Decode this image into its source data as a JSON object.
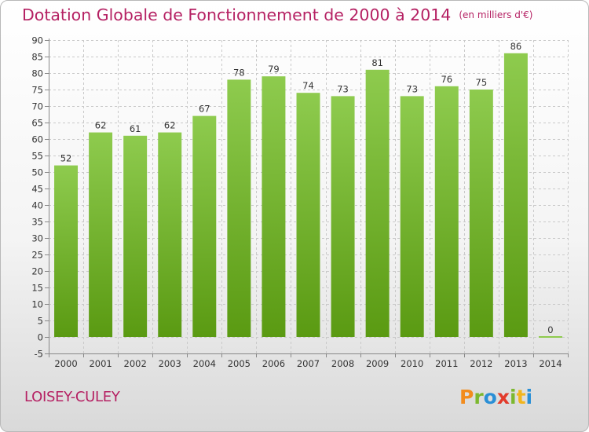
{
  "header": {
    "title": "Dotation Globale de Fonctionnement de 2000 à 2014",
    "subtitle": "(en milliers d'€)"
  },
  "footer": {
    "commune": "LOISEY-CULEY",
    "logo_letters": [
      "P",
      "r",
      "o",
      "x",
      "i",
      "t",
      "i"
    ],
    "logo_colors": [
      "#f28c1e",
      "#7cb82f",
      "#2a8fd6",
      "#e23b2b",
      "#7cb82f",
      "#f2b51e",
      "#2a8fd6"
    ]
  },
  "chart_data": {
    "type": "bar",
    "categories": [
      "2000",
      "2001",
      "2002",
      "2003",
      "2004",
      "2005",
      "2006",
      "2007",
      "2008",
      "2009",
      "2010",
      "2011",
      "2012",
      "2013",
      "2014"
    ],
    "values": [
      52,
      62,
      61,
      62,
      67,
      78,
      79,
      74,
      73,
      81,
      73,
      76,
      75,
      86,
      0
    ],
    "ylim": [
      -5,
      90
    ],
    "yticks": [
      -5,
      0,
      5,
      10,
      15,
      20,
      25,
      30,
      35,
      40,
      45,
      50,
      55,
      60,
      65,
      70,
      75,
      80,
      85,
      90
    ],
    "grid": true,
    "bar_color_top": "#8ecb4e",
    "bar_color_bottom": "#5a9a12",
    "title_color": "#b52163"
  }
}
